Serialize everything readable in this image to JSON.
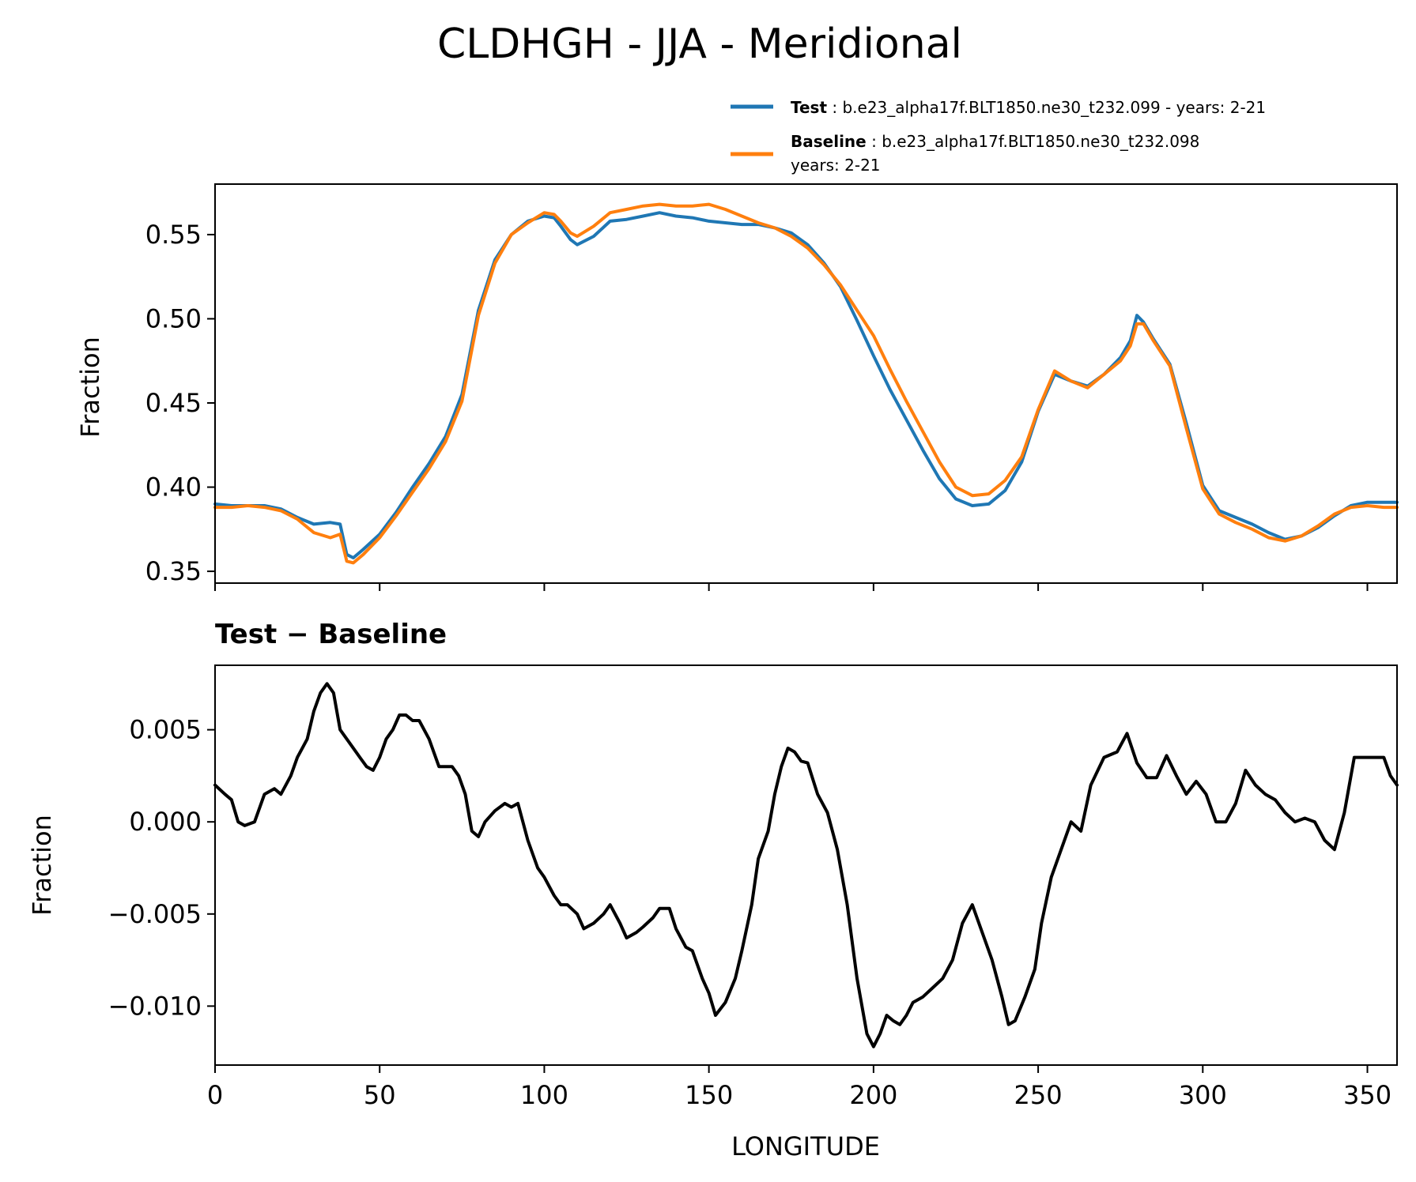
{
  "figure": {
    "title": "CLDHGH - JJA - Meridional"
  },
  "legend": {
    "test_label": "Test",
    "test_desc": "b.e23_alpha17f.BLT1850.ne30_t232.099 - years: 2-21",
    "baseline_label": "Baseline",
    "baseline_desc": "b.e23_alpha17f.BLT1850.ne30_t232.098",
    "baseline_years": "years: 2-21"
  },
  "chart_data": [
    {
      "type": "line",
      "title": "",
      "xlabel": "",
      "ylabel": "Fraction",
      "xlim": [
        0,
        359
      ],
      "ylim": [
        0.343,
        0.58
      ],
      "x_ticks": [
        0,
        50,
        100,
        150,
        200,
        250,
        300,
        350
      ],
      "y_ticks": [
        0.35,
        0.4,
        0.45,
        0.5,
        0.55
      ],
      "y_tick_labels": [
        "0.35",
        "0.40",
        "0.45",
        "0.50",
        "0.55"
      ],
      "series": [
        {
          "name": "Test",
          "color": "#1f77b4",
          "x": [
            0,
            5,
            10,
            15,
            20,
            25,
            30,
            35,
            38,
            40,
            42,
            45,
            50,
            55,
            60,
            65,
            70,
            75,
            80,
            85,
            90,
            95,
            100,
            103,
            105,
            108,
            110,
            115,
            120,
            125,
            130,
            135,
            140,
            145,
            150,
            155,
            160,
            165,
            170,
            175,
            180,
            185,
            190,
            195,
            200,
            205,
            210,
            215,
            220,
            225,
            230,
            235,
            240,
            245,
            250,
            255,
            260,
            265,
            270,
            275,
            278,
            280,
            282,
            285,
            290,
            295,
            300,
            305,
            310,
            315,
            320,
            325,
            330,
            335,
            340,
            345,
            350,
            355,
            359
          ],
          "values": [
            0.39,
            0.389,
            0.389,
            0.389,
            0.387,
            0.382,
            0.378,
            0.379,
            0.378,
            0.36,
            0.358,
            0.363,
            0.372,
            0.385,
            0.4,
            0.414,
            0.43,
            0.455,
            0.505,
            0.535,
            0.55,
            0.558,
            0.561,
            0.56,
            0.555,
            0.547,
            0.544,
            0.549,
            0.558,
            0.559,
            0.561,
            0.563,
            0.561,
            0.56,
            0.558,
            0.557,
            0.556,
            0.556,
            0.554,
            0.551,
            0.544,
            0.533,
            0.519,
            0.499,
            0.478,
            0.458,
            0.44,
            0.422,
            0.405,
            0.393,
            0.389,
            0.39,
            0.398,
            0.415,
            0.445,
            0.467,
            0.463,
            0.46,
            0.467,
            0.477,
            0.487,
            0.502,
            0.498,
            0.488,
            0.473,
            0.438,
            0.401,
            0.386,
            0.382,
            0.378,
            0.373,
            0.369,
            0.371,
            0.376,
            0.383,
            0.389,
            0.391,
            0.391,
            0.391
          ]
        },
        {
          "name": "Baseline",
          "color": "#ff7f0e",
          "x": [
            0,
            5,
            10,
            15,
            20,
            25,
            30,
            35,
            38,
            40,
            42,
            45,
            50,
            55,
            60,
            65,
            70,
            75,
            80,
            85,
            90,
            95,
            100,
            103,
            105,
            108,
            110,
            115,
            120,
            125,
            130,
            135,
            140,
            145,
            150,
            155,
            160,
            165,
            170,
            175,
            180,
            185,
            190,
            195,
            200,
            205,
            210,
            215,
            220,
            225,
            230,
            235,
            240,
            245,
            250,
            255,
            260,
            265,
            270,
            275,
            278,
            280,
            282,
            285,
            290,
            295,
            300,
            305,
            310,
            315,
            320,
            325,
            330,
            335,
            340,
            345,
            350,
            355,
            359
          ],
          "values": [
            0.388,
            0.388,
            0.389,
            0.388,
            0.386,
            0.381,
            0.373,
            0.37,
            0.372,
            0.356,
            0.355,
            0.36,
            0.37,
            0.383,
            0.397,
            0.411,
            0.427,
            0.451,
            0.502,
            0.533,
            0.55,
            0.557,
            0.563,
            0.562,
            0.558,
            0.551,
            0.549,
            0.555,
            0.563,
            0.565,
            0.567,
            0.568,
            0.567,
            0.567,
            0.568,
            0.565,
            0.561,
            0.557,
            0.554,
            0.549,
            0.542,
            0.532,
            0.52,
            0.505,
            0.49,
            0.47,
            0.451,
            0.433,
            0.415,
            0.4,
            0.395,
            0.396,
            0.404,
            0.418,
            0.446,
            0.469,
            0.463,
            0.459,
            0.467,
            0.475,
            0.484,
            0.497,
            0.497,
            0.487,
            0.472,
            0.435,
            0.399,
            0.384,
            0.379,
            0.375,
            0.37,
            0.368,
            0.371,
            0.377,
            0.384,
            0.388,
            0.389,
            0.388,
            0.388
          ]
        }
      ]
    },
    {
      "type": "line",
      "title": "Test − Baseline",
      "xlabel": "LONGITUDE",
      "ylabel": "Fraction",
      "xlim": [
        0,
        359
      ],
      "ylim": [
        -0.0132,
        0.0085
      ],
      "x_ticks": [
        0,
        50,
        100,
        150,
        200,
        250,
        300,
        350
      ],
      "x_tick_labels": [
        "0",
        "50",
        "100",
        "150",
        "200",
        "250",
        "300",
        "350"
      ],
      "y_ticks": [
        -0.01,
        -0.005,
        0.0,
        0.005
      ],
      "y_tick_labels": [
        "−0.010",
        "−0.005",
        "0.000",
        "0.005"
      ],
      "series": [
        {
          "name": "Test − Baseline",
          "color": "#000000",
          "x": [
            0,
            3,
            5,
            7,
            9,
            12,
            15,
            18,
            20,
            23,
            25,
            28,
            30,
            32,
            34,
            36,
            38,
            40,
            42,
            44,
            46,
            48,
            50,
            52,
            54,
            56,
            58,
            60,
            62,
            65,
            68,
            70,
            72,
            74,
            76,
            78,
            80,
            82,
            85,
            88,
            90,
            92,
            95,
            98,
            100,
            103,
            105,
            107,
            110,
            112,
            115,
            118,
            120,
            123,
            125,
            128,
            130,
            133,
            135,
            138,
            140,
            143,
            145,
            148,
            150,
            152,
            155,
            158,
            160,
            163,
            165,
            168,
            170,
            172,
            174,
            176,
            178,
            180,
            183,
            186,
            189,
            192,
            195,
            198,
            200,
            202,
            204,
            206,
            208,
            210,
            212,
            215,
            218,
            221,
            224,
            227,
            230,
            233,
            236,
            239,
            241,
            243,
            246,
            249,
            251,
            254,
            257,
            260,
            263,
            266,
            270,
            274,
            277,
            280,
            283,
            286,
            289,
            292,
            295,
            298,
            301,
            304,
            307,
            310,
            313,
            316,
            319,
            322,
            325,
            328,
            331,
            334,
            337,
            340,
            343,
            346,
            349,
            352,
            355,
            357,
            359
          ],
          "values": [
            0.002,
            0.0015,
            0.0012,
            0.0,
            -0.0002,
            0.0,
            0.0015,
            0.0018,
            0.0015,
            0.0025,
            0.0035,
            0.0045,
            0.006,
            0.007,
            0.0075,
            0.007,
            0.005,
            0.0045,
            0.004,
            0.0035,
            0.003,
            0.0028,
            0.0035,
            0.0045,
            0.005,
            0.0058,
            0.0058,
            0.0055,
            0.0055,
            0.0045,
            0.003,
            0.003,
            0.003,
            0.0025,
            0.0015,
            -0.0005,
            -0.0008,
            0.0,
            0.0006,
            0.001,
            0.0008,
            0.001,
            -0.001,
            -0.0025,
            -0.003,
            -0.004,
            -0.0045,
            -0.0045,
            -0.005,
            -0.0058,
            -0.0055,
            -0.005,
            -0.0045,
            -0.0055,
            -0.0063,
            -0.006,
            -0.0057,
            -0.0052,
            -0.0047,
            -0.0047,
            -0.0058,
            -0.0068,
            -0.007,
            -0.0085,
            -0.0093,
            -0.0105,
            -0.0098,
            -0.0085,
            -0.007,
            -0.0045,
            -0.002,
            -0.0005,
            0.0015,
            0.003,
            0.004,
            0.0038,
            0.0033,
            0.0032,
            0.0015,
            0.0005,
            -0.0015,
            -0.0045,
            -0.0085,
            -0.0115,
            -0.0122,
            -0.0115,
            -0.0105,
            -0.0108,
            -0.011,
            -0.0105,
            -0.0098,
            -0.0095,
            -0.009,
            -0.0085,
            -0.0075,
            -0.0055,
            -0.0045,
            -0.006,
            -0.0075,
            -0.0095,
            -0.011,
            -0.0108,
            -0.0095,
            -0.008,
            -0.0055,
            -0.003,
            -0.0015,
            0.0,
            -0.0005,
            0.002,
            0.0035,
            0.0038,
            0.0048,
            0.0032,
            0.0024,
            0.0024,
            0.0036,
            0.0025,
            0.0015,
            0.0022,
            0.0015,
            0.0,
            0.0,
            0.001,
            0.0028,
            0.002,
            0.0015,
            0.0012,
            0.0005,
            0.0,
            0.0002,
            0.0,
            -0.001,
            -0.0015,
            0.0005,
            0.0035,
            0.0035,
            0.0035,
            0.0035,
            0.0025,
            0.002
          ]
        }
      ]
    }
  ]
}
